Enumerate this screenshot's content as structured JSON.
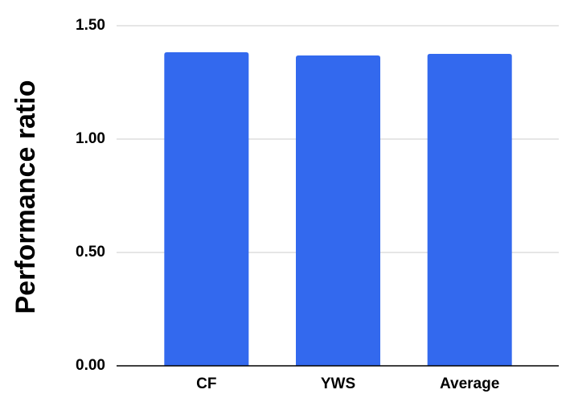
{
  "chart_data": {
    "type": "bar",
    "y_label": "Performance ratio",
    "categories": [
      "CF",
      "YWS",
      "Average"
    ],
    "values": [
      1.383,
      1.369,
      1.376
    ],
    "color": "#3369ee",
    "ylim": [
      0,
      1.5
    ],
    "yticks": [
      {
        "value": 0,
        "label": "0.00"
      },
      {
        "value": 0.5,
        "label": "0.50"
      },
      {
        "value": 1,
        "label": "1.00"
      },
      {
        "value": 1.5,
        "label": "1.50"
      }
    ],
    "grid": true
  }
}
